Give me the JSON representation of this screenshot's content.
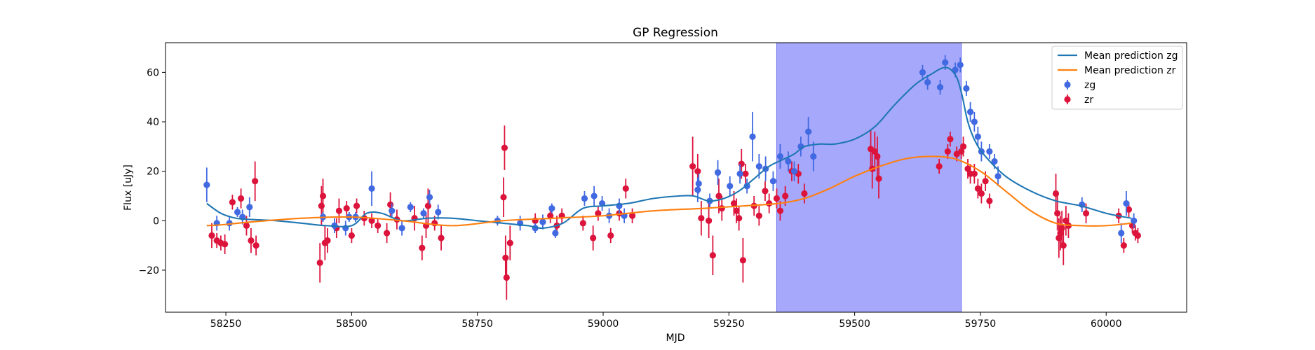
{
  "chart_data": {
    "type": "scatter",
    "title": "GP Regression",
    "xlabel": "MJD",
    "ylabel": "Flux [uJy]",
    "xlim": [
      58130,
      60160
    ],
    "ylim": [
      -37,
      72
    ],
    "xticks": [
      58250,
      58500,
      58750,
      59000,
      59250,
      59500,
      59750,
      60000
    ],
    "yticks": [
      -20,
      0,
      20,
      40,
      60
    ],
    "grid": false,
    "legend_position": "top-right",
    "highlight_span": {
      "x0": 59345,
      "x1": 59712,
      "color": "#a6a8fc"
    },
    "colors": {
      "zg_line": "#1f77b4",
      "zr_line": "#ff7f0e",
      "zg_points": "#4169e1",
      "zr_points": "#dc143c"
    },
    "legend": [
      {
        "label": "Mean prediction zg",
        "kind": "line",
        "color": "#1f77b4"
      },
      {
        "label": "Mean prediction zr",
        "kind": "line",
        "color": "#ff7f0e"
      },
      {
        "label": "zg",
        "kind": "errorbar",
        "color": "#4169e1"
      },
      {
        "label": "zr",
        "kind": "errorbar",
        "color": "#dc143c"
      }
    ],
    "series": [
      {
        "name": "Mean prediction zg",
        "kind": "line",
        "x": [
          58212,
          58240,
          58270,
          58300,
          58350,
          58400,
          58450,
          58500,
          58530,
          58560,
          58600,
          58650,
          58700,
          58750,
          58800,
          58850,
          58880,
          58920,
          58960,
          59000,
          59050,
          59100,
          59150,
          59180,
          59210,
          59240,
          59270,
          59300,
          59330,
          59360,
          59380,
          59400,
          59430,
          59460,
          59500,
          59540,
          59580,
          59620,
          59650,
          59680,
          59700,
          59712,
          59725,
          59740,
          59760,
          59800,
          59850,
          59900,
          59950,
          60000,
          60050
        ],
        "y": [
          7,
          3,
          1,
          0.5,
          0,
          -1,
          -2,
          -2,
          3,
          3,
          0,
          1,
          1,
          0,
          -1,
          -2,
          -3,
          -1,
          5,
          6,
          7,
          9,
          10,
          10,
          8,
          9,
          12,
          17,
          22,
          25,
          27,
          30,
          31,
          31,
          33,
          38,
          47,
          55,
          59,
          62,
          59,
          52,
          40,
          32,
          26,
          18,
          12,
          8,
          6,
          3,
          1
        ]
      },
      {
        "name": "Mean prediction zr",
        "kind": "line",
        "x": [
          58212,
          58250,
          58300,
          58400,
          58500,
          58600,
          58700,
          58800,
          58900,
          59000,
          59100,
          59200,
          59280,
          59350,
          59400,
          59450,
          59500,
          59550,
          59600,
          59650,
          59700,
          59750,
          59800,
          59850,
          59900,
          59950,
          60000,
          60050
        ],
        "y": [
          -2,
          -1.5,
          -0.5,
          1,
          1.5,
          0,
          -2,
          0,
          1,
          2,
          4,
          5,
          6,
          7,
          9,
          13,
          18,
          22,
          25,
          26,
          25,
          20,
          12,
          4,
          -1,
          -2,
          -2,
          -1
        ]
      },
      {
        "name": "zg",
        "kind": "errorbar",
        "points": [
          [
            58212,
            14.5,
            7
          ],
          [
            58232,
            -1,
            3
          ],
          [
            58257,
            -1,
            3
          ],
          [
            58273,
            3.5,
            2
          ],
          [
            58283,
            1.5,
            3
          ],
          [
            58297,
            5.5,
            4
          ],
          [
            58443,
            1.5,
            2
          ],
          [
            58466,
            -2,
            3
          ],
          [
            58488,
            -3,
            3
          ],
          [
            58495,
            1.5,
            2
          ],
          [
            58508,
            1.5,
            2
          ],
          [
            58540,
            13,
            7
          ],
          [
            58580,
            4,
            3
          ],
          [
            58600,
            -3,
            3
          ],
          [
            58617,
            5.5,
            2
          ],
          [
            58643,
            3,
            2
          ],
          [
            58655,
            9.5,
            3
          ],
          [
            58672,
            3.5,
            3
          ],
          [
            58790,
            0,
            2
          ],
          [
            58835,
            -1,
            3
          ],
          [
            58865,
            -3,
            2
          ],
          [
            58880,
            -0.5,
            3
          ],
          [
            58898,
            5,
            2
          ],
          [
            58905,
            -5,
            2
          ],
          [
            58963,
            9,
            3
          ],
          [
            58982,
            10,
            4
          ],
          [
            58998,
            7,
            3
          ],
          [
            59012,
            2,
            3
          ],
          [
            59032,
            6,
            3
          ],
          [
            59042,
            2,
            3
          ],
          [
            59188,
            12.5,
            5
          ],
          [
            59190,
            15,
            4
          ],
          [
            59212,
            8,
            3
          ],
          [
            59228,
            19.5,
            5
          ],
          [
            59252,
            14,
            4
          ],
          [
            59272,
            19,
            4
          ],
          [
            59286,
            14,
            3
          ],
          [
            59297,
            34,
            10
          ],
          [
            59310,
            22,
            5
          ],
          [
            59323,
            21,
            5
          ],
          [
            59338,
            16,
            4
          ],
          [
            59352,
            26,
            5
          ],
          [
            59368,
            24,
            4
          ],
          [
            59380,
            20,
            4
          ],
          [
            59393,
            30,
            4
          ],
          [
            59408,
            36,
            6
          ],
          [
            59418,
            26,
            6
          ],
          [
            59635,
            60,
            3
          ],
          [
            59645,
            56,
            3
          ],
          [
            59670,
            54,
            3
          ],
          [
            59680,
            64,
            3
          ],
          [
            59700,
            61,
            3
          ],
          [
            59710,
            63,
            3
          ],
          [
            59722,
            53.5,
            3
          ],
          [
            59730,
            44,
            4
          ],
          [
            59738,
            40,
            4
          ],
          [
            59745,
            34,
            4
          ],
          [
            59752,
            28,
            4
          ],
          [
            59768,
            28,
            3
          ],
          [
            59778,
            24,
            3
          ],
          [
            59785,
            18,
            4
          ],
          [
            59952,
            6.5,
            3
          ],
          [
            60030,
            -5,
            4
          ],
          [
            60040,
            7,
            5
          ],
          [
            60055,
            0,
            3
          ]
        ]
      },
      {
        "name": "zr",
        "kind": "errorbar",
        "points": [
          [
            58222,
            -6,
            5
          ],
          [
            58232,
            -8,
            3
          ],
          [
            58240,
            -9,
            3
          ],
          [
            58248,
            -9.5,
            4
          ],
          [
            58263,
            7.5,
            3
          ],
          [
            58280,
            9,
            4
          ],
          [
            58291,
            -2,
            4
          ],
          [
            58300,
            -8,
            5
          ],
          [
            58308,
            16,
            8
          ],
          [
            58310,
            -10,
            4
          ],
          [
            58437,
            -17,
            8
          ],
          [
            58440,
            6,
            8
          ],
          [
            58443,
            10,
            7
          ],
          [
            58447,
            -9,
            7
          ],
          [
            58452,
            -8,
            5
          ],
          [
            58470,
            -3,
            4
          ],
          [
            58475,
            4,
            5
          ],
          [
            58490,
            5,
            3
          ],
          [
            58500,
            -6,
            3
          ],
          [
            58510,
            6,
            3
          ],
          [
            58525,
            1,
            3
          ],
          [
            58540,
            0,
            3
          ],
          [
            58552,
            -2,
            3
          ],
          [
            58570,
            -5,
            4
          ],
          [
            58577,
            6.5,
            5
          ],
          [
            58590,
            0.5,
            4
          ],
          [
            58625,
            1,
            5
          ],
          [
            58640,
            -11,
            5
          ],
          [
            58648,
            -2,
            5
          ],
          [
            58652,
            6,
            7
          ],
          [
            58665,
            -1,
            3
          ],
          [
            58678,
            -7,
            5
          ],
          [
            58802,
            9.5,
            8
          ],
          [
            58804,
            29.5,
            9
          ],
          [
            58806,
            -15,
            9
          ],
          [
            58808,
            -23,
            9
          ],
          [
            58815,
            -9,
            7
          ],
          [
            58865,
            0,
            3
          ],
          [
            58895,
            2,
            3
          ],
          [
            58908,
            -2,
            4
          ],
          [
            58918,
            2,
            3
          ],
          [
            58960,
            -1,
            3
          ],
          [
            58980,
            -7,
            5
          ],
          [
            58990,
            3,
            3
          ],
          [
            59015,
            -6,
            3
          ],
          [
            59032,
            3,
            3
          ],
          [
            59045,
            13,
            4
          ],
          [
            59058,
            2,
            3
          ],
          [
            59178,
            22,
            12
          ],
          [
            59188,
            20,
            7
          ],
          [
            59195,
            1,
            7
          ],
          [
            59210,
            0,
            7
          ],
          [
            59218,
            -14,
            8
          ],
          [
            59230,
            10,
            7
          ],
          [
            59236,
            5,
            5
          ],
          [
            59260,
            7,
            5
          ],
          [
            59265,
            4,
            5
          ],
          [
            59270,
            1,
            5
          ],
          [
            59275,
            23,
            6
          ],
          [
            59278,
            -16,
            9
          ],
          [
            59283,
            19,
            4
          ],
          [
            59300,
            6,
            4
          ],
          [
            59310,
            2,
            4
          ],
          [
            59322,
            12,
            4
          ],
          [
            59330,
            7,
            4
          ],
          [
            59345,
            9,
            4
          ],
          [
            59352,
            4,
            4
          ],
          [
            59362,
            10,
            4
          ],
          [
            59375,
            20,
            4
          ],
          [
            59388,
            19,
            4
          ],
          [
            59400,
            11,
            4
          ],
          [
            59532,
            29,
            8
          ],
          [
            59535,
            21,
            8
          ],
          [
            59540,
            28,
            8
          ],
          [
            59545,
            26,
            8
          ],
          [
            59548,
            17,
            8
          ],
          [
            59668,
            22,
            3
          ],
          [
            59685,
            28,
            3
          ],
          [
            59690,
            33,
            3
          ],
          [
            59703,
            27,
            3
          ],
          [
            59712,
            28,
            3
          ],
          [
            59716,
            30,
            4
          ],
          [
            59725,
            21,
            4
          ],
          [
            59730,
            19,
            4
          ],
          [
            59738,
            19,
            4
          ],
          [
            59745,
            13,
            4
          ],
          [
            59752,
            11,
            4
          ],
          [
            59760,
            16,
            4
          ],
          [
            59768,
            8,
            3
          ],
          [
            59900,
            11,
            8
          ],
          [
            59903,
            3,
            7
          ],
          [
            59906,
            -7,
            8
          ],
          [
            59909,
            -5,
            7
          ],
          [
            59912,
            -3,
            7
          ],
          [
            59915,
            -10,
            8
          ],
          [
            59920,
            0,
            6
          ],
          [
            59925,
            -2,
            5
          ],
          [
            59960,
            3,
            4
          ],
          [
            60025,
            2,
            3
          ],
          [
            60035,
            -10,
            3
          ],
          [
            60045,
            4.5,
            3
          ],
          [
            60052,
            -2,
            3
          ],
          [
            60058,
            -5,
            3
          ],
          [
            60063,
            -6,
            3
          ]
        ]
      }
    ]
  }
}
